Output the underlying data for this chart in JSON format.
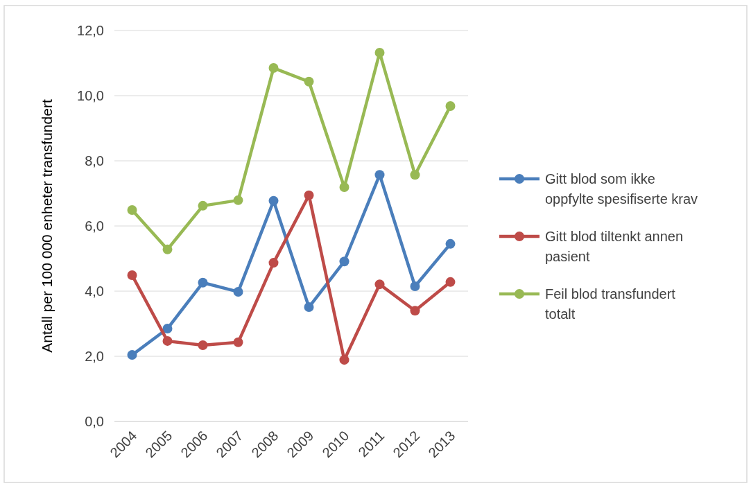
{
  "chart_data": {
    "type": "line",
    "ylabel": "Antall per 100 000 enheter transfundert",
    "categories": [
      "2004",
      "2005",
      "2006",
      "2007",
      "2008",
      "2009",
      "2010",
      "2011",
      "2012",
      "2013"
    ],
    "series": [
      {
        "name": "Gitt blod som ikke oppfylte spesifiserte krav",
        "color": "#4a7ebb",
        "values": [
          2.04,
          2.85,
          4.26,
          3.98,
          6.77,
          3.51,
          4.91,
          7.57,
          4.15,
          5.45
        ]
      },
      {
        "name": "Gitt blod tiltenkt annen pasient",
        "color": "#be4b48",
        "values": [
          4.49,
          2.47,
          2.34,
          2.43,
          4.87,
          6.94,
          1.89,
          4.21,
          3.4,
          4.28
        ]
      },
      {
        "name": "Feil blod transfundert totalt",
        "color": "#98b954",
        "values": [
          6.49,
          5.28,
          6.62,
          6.79,
          10.85,
          10.43,
          7.19,
          11.32,
          7.57,
          9.68
        ]
      }
    ],
    "ylim": [
      0,
      12
    ],
    "yticks": [
      {
        "value": 0,
        "label": "0,0"
      },
      {
        "value": 2,
        "label": "2,0"
      },
      {
        "value": 4,
        "label": "4,0"
      },
      {
        "value": 6,
        "label": "6,0"
      },
      {
        "value": 8,
        "label": "8,0"
      },
      {
        "value": 10,
        "label": "10,0"
      },
      {
        "value": 12,
        "label": "12,0"
      }
    ],
    "grid": "y",
    "legend": "right",
    "marker": "circle",
    "line_style": "solid"
  }
}
